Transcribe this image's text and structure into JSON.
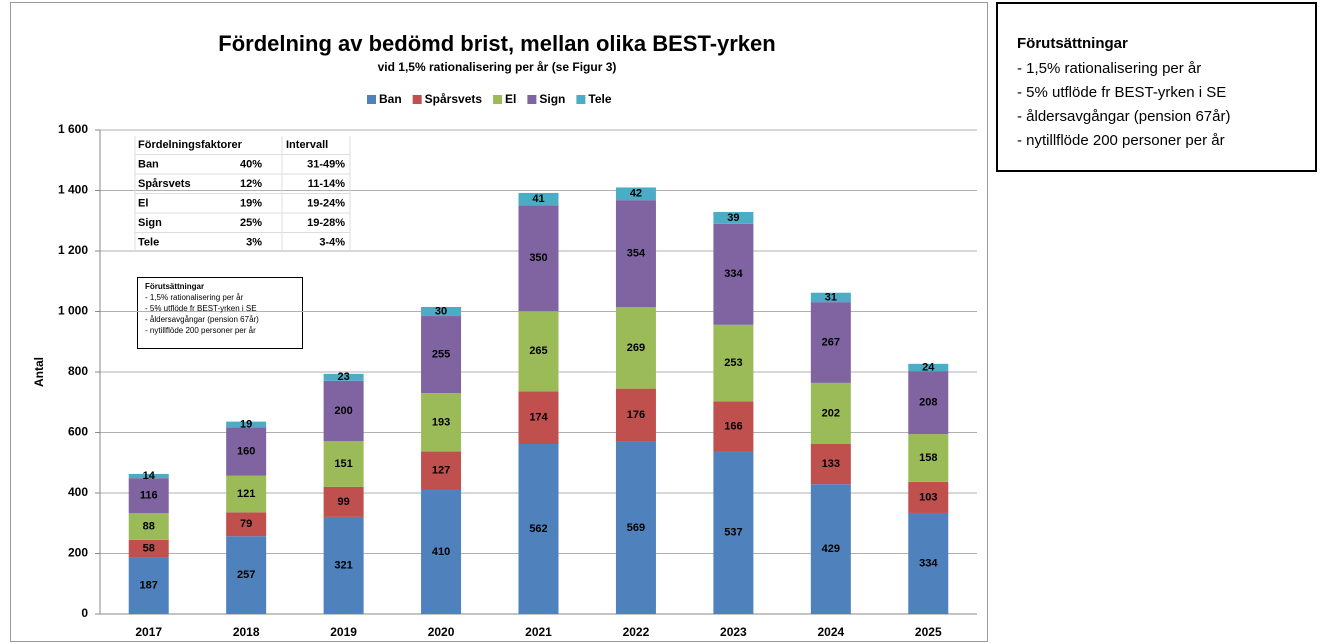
{
  "chart_data": {
    "type": "stacked_bar",
    "title": "Fördelning av bedömd brist, mellan olika BEST-yrken",
    "subtitle": "vid 1,5% rationalisering per år (se Figur 3)",
    "y_label": "Antal",
    "categories": [
      "2017",
      "2018",
      "2019",
      "2020",
      "2021",
      "2022",
      "2023",
      "2024",
      "2025"
    ],
    "series": [
      {
        "name": "Ban",
        "color": "#4f81bd",
        "values": [
          187,
          257,
          321,
          410,
          562,
          569,
          537,
          429,
          334
        ]
      },
      {
        "name": "Spårsvets",
        "color": "#c0504d",
        "values": [
          58,
          79,
          99,
          127,
          174,
          176,
          166,
          133,
          103
        ]
      },
      {
        "name": "El",
        "color": "#9bbb59",
        "values": [
          88,
          121,
          151,
          193,
          265,
          269,
          253,
          202,
          158
        ]
      },
      {
        "name": "Sign",
        "color": "#8064a2",
        "values": [
          116,
          160,
          200,
          255,
          350,
          354,
          334,
          267,
          208
        ]
      },
      {
        "name": "Tele",
        "color": "#4bacc6",
        "values": [
          14,
          19,
          23,
          30,
          41,
          42,
          39,
          31,
          24
        ]
      }
    ],
    "ylim": [
      0,
      1600
    ],
    "yticks": [
      0,
      200,
      400,
      600,
      800,
      {
        "value": 1000,
        "label": "1 000"
      },
      {
        "value": 1200,
        "label": "1 200"
      },
      {
        "value": 1400,
        "label": "1 400"
      },
      {
        "value": 1600,
        "label": "1 600"
      }
    ],
    "grid": true,
    "legend": "top",
    "table": {
      "headers": [
        "Fördelningsfaktorer",
        "Intervall"
      ],
      "rows": [
        [
          "Ban",
          "40%",
          "31-49%"
        ],
        [
          "Spårsvets",
          "12%",
          "11-14%"
        ],
        [
          "El",
          "19%",
          "19-24%"
        ],
        [
          "Sign",
          "25%",
          "19-28%"
        ],
        [
          "Tele",
          "3%",
          "3-4%"
        ]
      ]
    },
    "inset_note": {
      "title": "Förutsättningar",
      "items": [
        "- 1,5% rationalisering per år",
        "- 5% utflöde fr BEST-yrken i SE",
        "- åldersavgångar (pension 67år)",
        "- nytillflöde 200 personer per år"
      ]
    }
  },
  "side_note": {
    "title": "Förutsättningar",
    "items": [
      "- 1,5% rationalisering per år",
      "- 5% utflöde fr BEST-yrken i SE",
      "- åldersavgångar (pension 67år)",
      "- nytillflöde 200 personer per år"
    ]
  }
}
